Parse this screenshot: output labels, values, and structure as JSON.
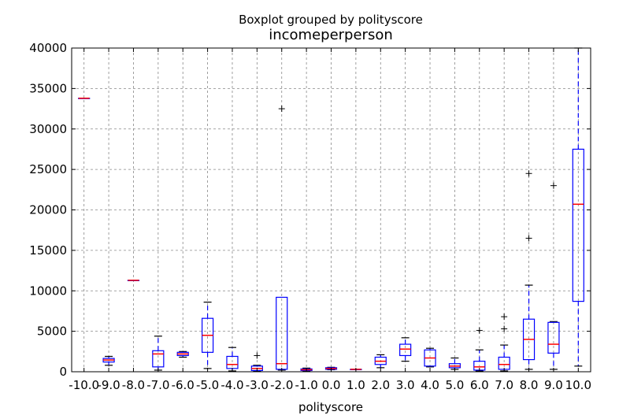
{
  "chart_data": {
    "type": "boxplot",
    "suptitle": "Boxplot grouped by polityscore",
    "title": "incomeperperson",
    "xlabel": "polityscore",
    "ylabel": "",
    "ylim": [
      0,
      40000
    ],
    "yticks": [
      0,
      5000,
      10000,
      15000,
      20000,
      25000,
      30000,
      35000,
      40000
    ],
    "grid": true,
    "categories": [
      "-10.0",
      "-9.0",
      "-8.0",
      "-7.0",
      "-6.0",
      "-5.0",
      "-4.0",
      "-3.0",
      "-2.0",
      "-1.0",
      "0.0",
      "1.0",
      "2.0",
      "3.0",
      "4.0",
      "5.0",
      "6.0",
      "7.0",
      "8.0",
      "9.0",
      "10.0"
    ],
    "boxes": [
      {
        "category": "-10.0",
        "whisker_low": 33800,
        "q1": 33800,
        "median": 33800,
        "q3": 33800,
        "whisker_high": 33800,
        "outliers": []
      },
      {
        "category": "-9.0",
        "whisker_low": 800,
        "q1": 1200,
        "median": 1450,
        "q3": 1650,
        "whisker_high": 1900,
        "outliers": []
      },
      {
        "category": "-8.0",
        "whisker_low": 11300,
        "q1": 11300,
        "median": 11300,
        "q3": 11300,
        "whisker_high": 11300,
        "outliers": []
      },
      {
        "category": "-7.0",
        "whisker_low": 200,
        "q1": 600,
        "median": 2200,
        "q3": 2600,
        "whisker_high": 4400,
        "outliers": []
      },
      {
        "category": "-6.0",
        "whisker_low": 1800,
        "q1": 2000,
        "median": 2200,
        "q3": 2400,
        "whisker_high": 2500,
        "outliers": []
      },
      {
        "category": "-5.0",
        "whisker_low": 400,
        "q1": 2400,
        "median": 4500,
        "q3": 6600,
        "whisker_high": 8600,
        "outliers": []
      },
      {
        "category": "-4.0",
        "whisker_low": 100,
        "q1": 400,
        "median": 900,
        "q3": 1900,
        "whisker_high": 3000,
        "outliers": []
      },
      {
        "category": "-3.0",
        "whisker_low": 100,
        "q1": 150,
        "median": 400,
        "q3": 700,
        "whisker_high": 800,
        "outliers": [
          2000
        ]
      },
      {
        "category": "-2.0",
        "whisker_low": 200,
        "q1": 300,
        "median": 1000,
        "q3": 9200,
        "whisker_high": 9200,
        "outliers": [
          32500
        ]
      },
      {
        "category": "-1.0",
        "whisker_low": 100,
        "q1": 150,
        "median": 250,
        "q3": 350,
        "whisker_high": 450,
        "outliers": []
      },
      {
        "category": "0.0",
        "whisker_low": 250,
        "q1": 300,
        "median": 400,
        "q3": 500,
        "whisker_high": 550,
        "outliers": []
      },
      {
        "category": "1.0",
        "whisker_low": 300,
        "q1": 300,
        "median": 300,
        "q3": 300,
        "whisker_high": 300,
        "outliers": []
      },
      {
        "category": "2.0",
        "whisker_low": 500,
        "q1": 900,
        "median": 1300,
        "q3": 1800,
        "whisker_high": 2100,
        "outliers": []
      },
      {
        "category": "3.0",
        "whisker_low": 1300,
        "q1": 2000,
        "median": 2800,
        "q3": 3400,
        "whisker_high": 4200,
        "outliers": []
      },
      {
        "category": "4.0",
        "whisker_low": 600,
        "q1": 700,
        "median": 1700,
        "q3": 2700,
        "whisker_high": 2900,
        "outliers": []
      },
      {
        "category": "5.0",
        "whisker_low": 300,
        "q1": 500,
        "median": 700,
        "q3": 1000,
        "whisker_high": 1700,
        "outliers": []
      },
      {
        "category": "6.0",
        "whisker_low": 100,
        "q1": 200,
        "median": 600,
        "q3": 1300,
        "whisker_high": 2700,
        "outliers": [
          5100
        ]
      },
      {
        "category": "7.0",
        "whisker_low": 100,
        "q1": 300,
        "median": 900,
        "q3": 1800,
        "whisker_high": 3300,
        "outliers": [
          5300,
          6800
        ]
      },
      {
        "category": "8.0",
        "whisker_low": 300,
        "q1": 1500,
        "median": 4000,
        "q3": 6500,
        "whisker_high": 10700,
        "outliers": [
          16500,
          24500
        ]
      },
      {
        "category": "9.0",
        "whisker_low": 300,
        "q1": 2300,
        "median": 3400,
        "q3": 6100,
        "whisker_high": 6200,
        "outliers": [
          23000
        ]
      },
      {
        "category": "10.0",
        "whisker_low": 700,
        "q1": 8700,
        "median": 20700,
        "q3": 27500,
        "whisker_high": 40000,
        "outliers": []
      }
    ]
  }
}
